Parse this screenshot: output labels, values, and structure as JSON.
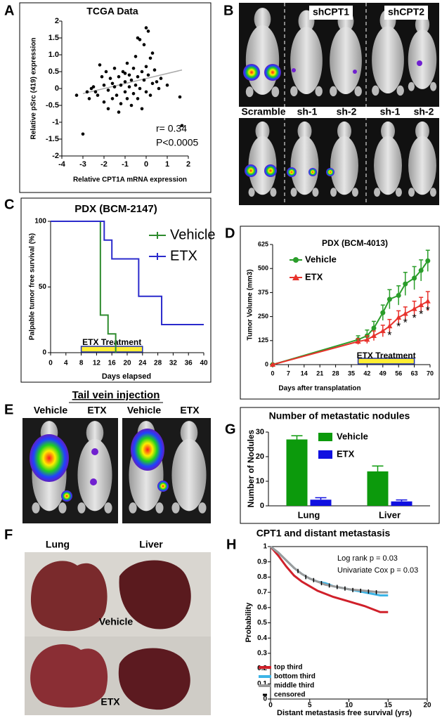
{
  "panel_labels": [
    "A",
    "B",
    "C",
    "D",
    "E",
    "F",
    "G",
    "H"
  ],
  "panel_b": {
    "top_labels": [
      "shCPT1",
      "shCPT2"
    ],
    "bottom_labels": [
      "Scramble",
      "sh-1",
      "sh-2",
      "sh-1",
      "sh-2"
    ]
  },
  "panel_e": {
    "title": "Tail vein injection",
    "labels": [
      "Vehicle",
      "ETX",
      "Vehicle",
      "ETX"
    ]
  },
  "panel_f": {
    "columns": [
      "Lung",
      "Liver"
    ],
    "rows": [
      "Vehicle",
      "ETX"
    ]
  },
  "chart_data": [
    {
      "type": "scatter",
      "title": "TCGA Data",
      "xlabel": "Relative CPT1A mRNA expression",
      "ylabel": "Relative pSrc (419) expression",
      "x": [
        -3.3,
        -3,
        -2.8,
        -2.7,
        -2.5,
        -2.4,
        -2.3,
        -2.2,
        -2.1,
        -2,
        -2,
        -1.9,
        -1.8,
        -1.8,
        -1.7,
        -1.6,
        -1.6,
        -1.5,
        -1.5,
        -1.4,
        -1.3,
        -1.3,
        -1.2,
        -1.2,
        -1.1,
        -1,
        -1,
        -0.9,
        -0.9,
        -0.8,
        -0.8,
        -0.7,
        -0.7,
        -0.6,
        -0.6,
        -0.5,
        -0.5,
        -0.4,
        -0.4,
        -0.3,
        -0.3,
        -0.2,
        -0.2,
        -0.1,
        -0.1,
        0,
        0,
        0.1,
        0.1,
        0.2,
        0.2,
        0.3,
        0.3,
        0.4,
        0.5,
        0.6,
        0.7,
        1,
        1.6,
        1.7,
        -2.6,
        -1,
        0,
        -0.4
      ],
      "values": [
        -0.2,
        -1.35,
        -0.1,
        -0.3,
        0.05,
        -0.1,
        -0.2,
        0.7,
        0.35,
        0.1,
        -0.4,
        0.5,
        -0.05,
        -0.6,
        0.3,
        0.15,
        -0.3,
        0.6,
        0.05,
        -0.2,
        0.35,
        -0.7,
        0.1,
        -0.45,
        0.5,
        0.2,
        -0.1,
        0.75,
        -0.3,
        0.4,
        0.05,
        -0.5,
        0.25,
        0.6,
        -0.15,
        0.1,
        0.95,
        -0.3,
        0.35,
        1.45,
        0,
        0.5,
        -0.6,
        0.25,
        1.3,
        0.65,
        -0.1,
        1.7,
        0.4,
        0.9,
        -0.2,
        1.05,
        0.15,
        0.55,
        0.2,
        0,
        0.3,
        0.1,
        -0.25,
        -1.1,
        0,
        0.45,
        1.8,
        1.5
      ],
      "color": "#000000",
      "trend": {
        "x": [
          -3,
          1.7
        ],
        "y": [
          -0.15,
          0.55
        ],
        "color": "#aaaaaa"
      },
      "annotations": [
        "r= 0.34",
        "P<0.0005"
      ],
      "xlim": [
        -4,
        2
      ],
      "ylim": [
        -2,
        2
      ],
      "xticks": [
        -4,
        -3,
        -2,
        -1,
        0,
        1,
        2
      ],
      "yticks": [
        2,
        1.5,
        {
          "value": 1,
          "label": "1.0"
        },
        0.5,
        0,
        -0.5,
        -1,
        -1.5,
        -2
      ]
    },
    {
      "type": "step",
      "title": "PDX (BCM-2147)",
      "xlabel": "Days elapsed",
      "ylabel": "Palpable tumor free survival (%)",
      "series": [
        {
          "name": "Vehicle",
          "color": "#2e8b2e",
          "x": [
            0,
            13,
            15,
            17
          ],
          "values": [
            100,
            28.6,
            14.3,
            0
          ]
        },
        {
          "name": "ETX",
          "color": "#2b2bcc",
          "x": [
            0,
            14,
            16,
            23,
            29,
            40
          ],
          "values": [
            100,
            85.7,
            71.4,
            42.9,
            21.4,
            21.4
          ]
        }
      ],
      "treatment": {
        "label": "ETX Treatment",
        "start": 8,
        "end": 24
      },
      "xlim": [
        0,
        40
      ],
      "ylim": [
        0,
        100
      ],
      "xticks": [
        0,
        4,
        8,
        12,
        16,
        20,
        24,
        28,
        32,
        36,
        40
      ],
      "yticks": [
        0,
        50,
        100
      ]
    },
    {
      "type": "line",
      "title": "PDX (BCM-4013)",
      "xlabel": "Days after transplatation",
      "ylabel": "Tumor Volume (mm3)",
      "x": [
        0,
        38,
        42,
        45,
        49,
        52,
        56,
        59,
        63,
        66,
        69
      ],
      "series": [
        {
          "name": "Vehicle",
          "color": "#2a9d2a",
          "marker": "circle",
          "values": [
            0,
            130,
            150,
            190,
            270,
            340,
            360,
            420,
            450,
            490,
            540
          ],
          "errors": [
            0,
            20,
            30,
            35,
            40,
            50,
            50,
            60,
            60,
            55,
            55
          ]
        },
        {
          "name": "ETX",
          "color": "#e8322c",
          "marker": "triangle",
          "values": [
            0,
            120,
            130,
            150,
            175,
            200,
            245,
            265,
            290,
            310,
            330
          ],
          "errors": [
            0,
            15,
            20,
            25,
            30,
            35,
            35,
            35,
            40,
            40,
            50
          ]
        }
      ],
      "treatment": {
        "label": "ETX Treatment",
        "start": 38,
        "end": 63
      },
      "significance": {
        "label": "*",
        "x": [
          52,
          56,
          59,
          63,
          66,
          69
        ]
      },
      "xlim": [
        0,
        70
      ],
      "ylim": [
        0,
        625
      ],
      "xticks": [
        0,
        7,
        14,
        21,
        28,
        35,
        42,
        49,
        56,
        63,
        70
      ],
      "yticks": [
        0,
        125,
        250,
        375,
        500,
        625
      ]
    },
    {
      "type": "bar",
      "title": "Number of metastatic nodules",
      "ylabel": "Number of Nodules",
      "categories": [
        "Lung",
        "Liver"
      ],
      "series": [
        {
          "name": "Vehicle",
          "color": "#0c9a0c",
          "values": [
            27,
            14
          ],
          "errors": [
            1.5,
            2.2
          ]
        },
        {
          "name": "ETX",
          "color": "#1010e0",
          "values": [
            2.5,
            1.8
          ],
          "errors": [
            0.8,
            0.6
          ]
        }
      ],
      "ylim": [
        0,
        30
      ],
      "yticks": [
        0,
        10,
        20,
        30
      ]
    },
    {
      "type": "line",
      "title": "CPT1 and distant metastasis",
      "xlabel": "Distant metastasis free survival (yrs)",
      "ylabel": "Probability",
      "series": [
        {
          "name": "top third",
          "color": "#d0202a",
          "marker": "none",
          "x": [
            0,
            1,
            2,
            3,
            4,
            5,
            6,
            7,
            8,
            10,
            12,
            14,
            15
          ],
          "values": [
            1,
            0.94,
            0.87,
            0.81,
            0.77,
            0.74,
            0.71,
            0.69,
            0.67,
            0.64,
            0.61,
            0.57,
            0.57
          ]
        },
        {
          "name": "bottom third",
          "color": "#3cb4e6",
          "marker": "none",
          "x": [
            0,
            1,
            2,
            3,
            4,
            5,
            6,
            7,
            8,
            10,
            12,
            14,
            15
          ],
          "values": [
            1,
            0.96,
            0.91,
            0.86,
            0.82,
            0.79,
            0.77,
            0.76,
            0.74,
            0.72,
            0.7,
            0.68,
            0.68
          ]
        },
        {
          "name": "middle third",
          "color": "#9a9a9a",
          "marker": "none",
          "x": [
            0,
            1,
            2,
            3,
            4,
            5,
            6,
            7,
            8,
            10,
            12,
            14,
            15
          ],
          "values": [
            1,
            0.96,
            0.91,
            0.86,
            0.82,
            0.79,
            0.77,
            0.75,
            0.74,
            0.72,
            0.71,
            0.7,
            0.7
          ]
        },
        {
          "name": "censored",
          "color": "#000000",
          "marker": "tick",
          "x": [
            3.5,
            4.5,
            5.5,
            6.5,
            7.5,
            8.5,
            9.5,
            10.5,
            11.5,
            12.5,
            13.5
          ],
          "values": [
            0.84,
            0.8,
            0.78,
            0.76,
            0.745,
            0.735,
            0.725,
            0.715,
            0.71,
            0.705,
            0.7
          ]
        }
      ],
      "annotations": [
        "Log rank p = 0.03",
        "Univariate Cox p = 0.03"
      ],
      "xlim": [
        0,
        20
      ],
      "ylim": [
        0,
        1
      ],
      "xticks": [
        0,
        5,
        10,
        15,
        20
      ],
      "yticks": [
        0,
        0.1,
        0.2,
        0.3,
        0.4,
        0.5,
        0.6,
        0.7,
        0.8,
        0.9,
        1
      ]
    }
  ]
}
